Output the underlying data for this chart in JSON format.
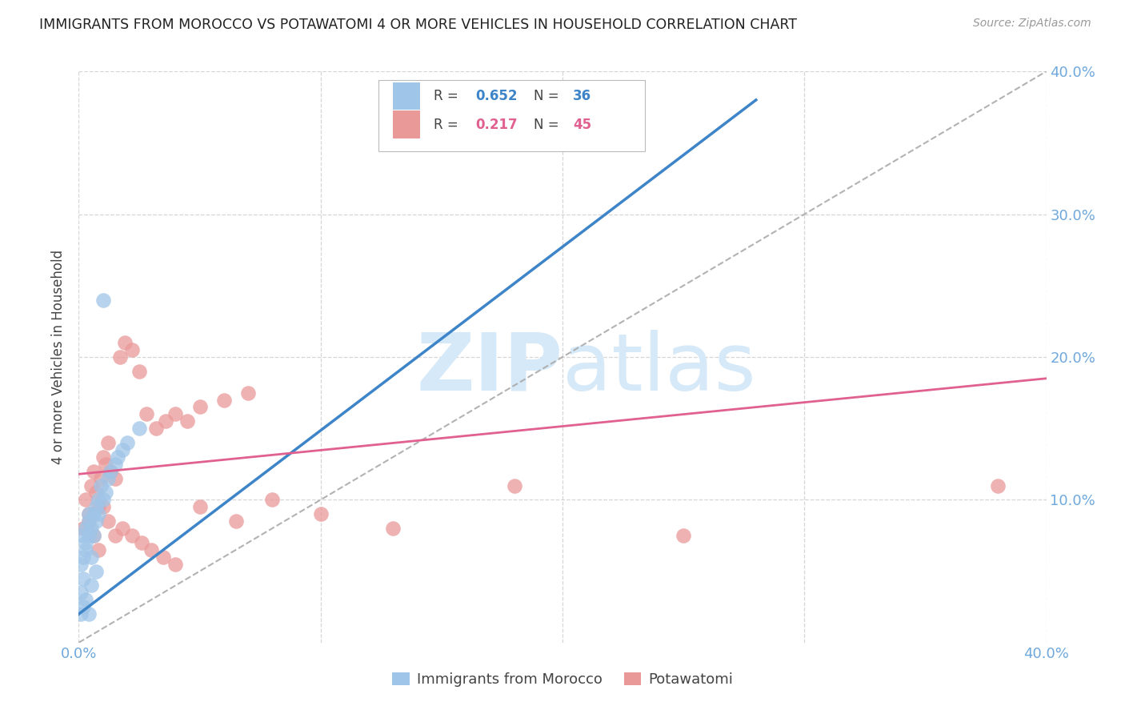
{
  "title": "IMMIGRANTS FROM MOROCCO VS POTAWATOMI 4 OR MORE VEHICLES IN HOUSEHOLD CORRELATION CHART",
  "source": "Source: ZipAtlas.com",
  "ylabel": "4 or more Vehicles in Household",
  "xlim": [
    0.0,
    0.4
  ],
  "ylim": [
    0.0,
    0.4
  ],
  "xtick_vals": [
    0.0,
    0.1,
    0.2,
    0.3,
    0.4
  ],
  "xtick_labels": [
    "0.0%",
    "",
    "",
    "",
    "40.0%"
  ],
  "ytick_vals": [
    0.1,
    0.2,
    0.3,
    0.4
  ],
  "ytick_labels_right": [
    "10.0%",
    "20.0%",
    "30.0%",
    "40.0%"
  ],
  "R_blue": 0.652,
  "N_blue": 36,
  "R_pink": 0.217,
  "N_pink": 45,
  "blue_color": "#9fc5e8",
  "pink_color": "#ea9999",
  "trend_blue_color": "#3d85c8",
  "trend_pink_color": "#e06090",
  "trend_gray_color": "#aaaaaa",
  "tick_color": "#6fa8dc",
  "watermark_color": "#d6e9f8",
  "background_color": "#ffffff",
  "grid_color": "#cccccc",
  "blue_x": [
    0.001,
    0.001,
    0.001,
    0.002,
    0.002,
    0.002,
    0.003,
    0.003,
    0.003,
    0.004,
    0.004,
    0.004,
    0.005,
    0.005,
    0.006,
    0.006,
    0.007,
    0.007,
    0.008,
    0.008,
    0.009,
    0.01,
    0.011,
    0.012,
    0.013,
    0.015,
    0.016,
    0.018,
    0.02,
    0.025,
    0.003,
    0.005,
    0.007,
    0.002,
    0.01,
    0.004
  ],
  "blue_y": [
    0.02,
    0.035,
    0.055,
    0.025,
    0.06,
    0.075,
    0.065,
    0.08,
    0.07,
    0.075,
    0.085,
    0.09,
    0.06,
    0.08,
    0.075,
    0.09,
    0.085,
    0.095,
    0.09,
    0.1,
    0.11,
    0.1,
    0.105,
    0.115,
    0.12,
    0.125,
    0.13,
    0.135,
    0.14,
    0.15,
    0.03,
    0.04,
    0.05,
    0.045,
    0.24,
    0.02
  ],
  "pink_x": [
    0.002,
    0.003,
    0.004,
    0.005,
    0.006,
    0.007,
    0.008,
    0.009,
    0.01,
    0.011,
    0.012,
    0.013,
    0.015,
    0.017,
    0.019,
    0.022,
    0.025,
    0.028,
    0.032,
    0.036,
    0.04,
    0.045,
    0.05,
    0.06,
    0.07,
    0.004,
    0.006,
    0.008,
    0.01,
    0.012,
    0.015,
    0.018,
    0.022,
    0.026,
    0.03,
    0.035,
    0.04,
    0.05,
    0.065,
    0.08,
    0.1,
    0.13,
    0.18,
    0.38,
    0.25
  ],
  "pink_y": [
    0.08,
    0.1,
    0.09,
    0.11,
    0.12,
    0.105,
    0.095,
    0.115,
    0.13,
    0.125,
    0.14,
    0.12,
    0.115,
    0.2,
    0.21,
    0.205,
    0.19,
    0.16,
    0.15,
    0.155,
    0.16,
    0.155,
    0.165,
    0.17,
    0.175,
    0.085,
    0.075,
    0.065,
    0.095,
    0.085,
    0.075,
    0.08,
    0.075,
    0.07,
    0.065,
    0.06,
    0.055,
    0.095,
    0.085,
    0.1,
    0.09,
    0.08,
    0.11,
    0.11,
    0.075
  ],
  "blue_line_x0": 0.0,
  "blue_line_y0": 0.02,
  "blue_line_x1": 0.28,
  "blue_line_y1": 0.38,
  "pink_line_x0": 0.0,
  "pink_line_y0": 0.118,
  "pink_line_x1": 0.4,
  "pink_line_y1": 0.185
}
